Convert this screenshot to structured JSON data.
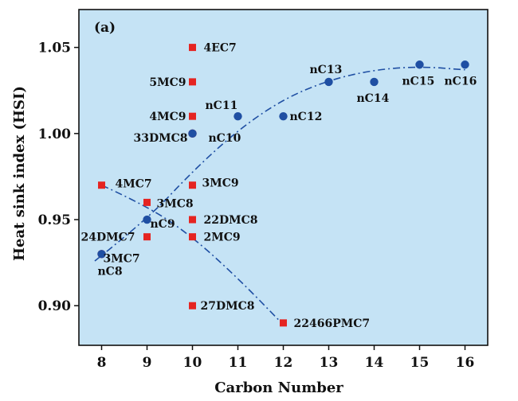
{
  "chart_data": {
    "type": "scatter",
    "panel_label": "(a)",
    "xlabel": "Carbon Number",
    "ylabel": "Heat sink index (HSI)",
    "xlim": [
      7.5,
      16.5
    ],
    "ylim": [
      0.877,
      1.072
    ],
    "xticks": [
      8,
      9,
      10,
      11,
      12,
      13,
      14,
      15,
      16
    ],
    "yticks": [
      0.9,
      0.95,
      1.0,
      1.05
    ],
    "ytick_labels": [
      "0.90",
      "0.95",
      "1.00",
      "1.05"
    ],
    "background_color": "#c5e3f5",
    "series": [
      {
        "marker": "square",
        "color": "#e52421",
        "points": [
          {
            "label": "4EC7",
            "x": 10,
            "y": 1.05
          },
          {
            "label": "5MC9",
            "x": 10,
            "y": 1.03
          },
          {
            "label": "4MC9",
            "x": 10,
            "y": 1.01
          },
          {
            "label": "4MC7",
            "x": 8,
            "y": 0.97
          },
          {
            "label": "3MC9",
            "x": 10,
            "y": 0.97
          },
          {
            "label": "3MC8",
            "x": 9,
            "y": 0.96
          },
          {
            "label": "22DMC8",
            "x": 10,
            "y": 0.95
          },
          {
            "label": "24DMC7",
            "x": 9,
            "y": 0.94
          },
          {
            "label": "2MC9",
            "x": 10,
            "y": 0.94
          },
          {
            "label": "27DMC8",
            "x": 10,
            "y": 0.9
          },
          {
            "label": "22466PMC7",
            "x": 12,
            "y": 0.89
          }
        ]
      },
      {
        "marker": "circle",
        "color": "#e52421",
        "points": [
          {
            "label": "33DMC8",
            "x": 10,
            "y": 1.0
          },
          {
            "label": "3MC7",
            "x": 8,
            "y": 0.93
          }
        ]
      },
      {
        "marker": "circle",
        "color": "#1f4fa3",
        "points": [
          {
            "label": "nC8",
            "x": 8,
            "y": 0.93
          },
          {
            "label": "nC9",
            "x": 9,
            "y": 0.95
          },
          {
            "label": "nC10",
            "x": 10,
            "y": 1.0
          },
          {
            "label": "nC11",
            "x": 11,
            "y": 1.01
          },
          {
            "label": "nC12",
            "x": 12,
            "y": 1.01
          },
          {
            "label": "nC13",
            "x": 13,
            "y": 1.03
          },
          {
            "label": "nC14",
            "x": 14,
            "y": 1.03
          },
          {
            "label": "nC15",
            "x": 15,
            "y": 1.04
          },
          {
            "label": "nC16",
            "x": 16,
            "y": 1.04
          }
        ]
      }
    ],
    "trend_lines": [
      {
        "style": "dash-dot",
        "color": "#1f4fa3",
        "x": [
          7.85,
          9,
          10,
          11,
          12,
          13,
          14,
          15,
          16
        ],
        "y": [
          0.926,
          0.95,
          0.978,
          1.002,
          1.02,
          1.031,
          1.037,
          1.039,
          1.037
        ]
      },
      {
        "style": "dash-dot",
        "color": "#1f4fa3",
        "x": [
          8,
          9,
          10,
          11,
          12
        ],
        "y": [
          0.97,
          0.958,
          0.94,
          0.916,
          0.889
        ]
      }
    ]
  }
}
